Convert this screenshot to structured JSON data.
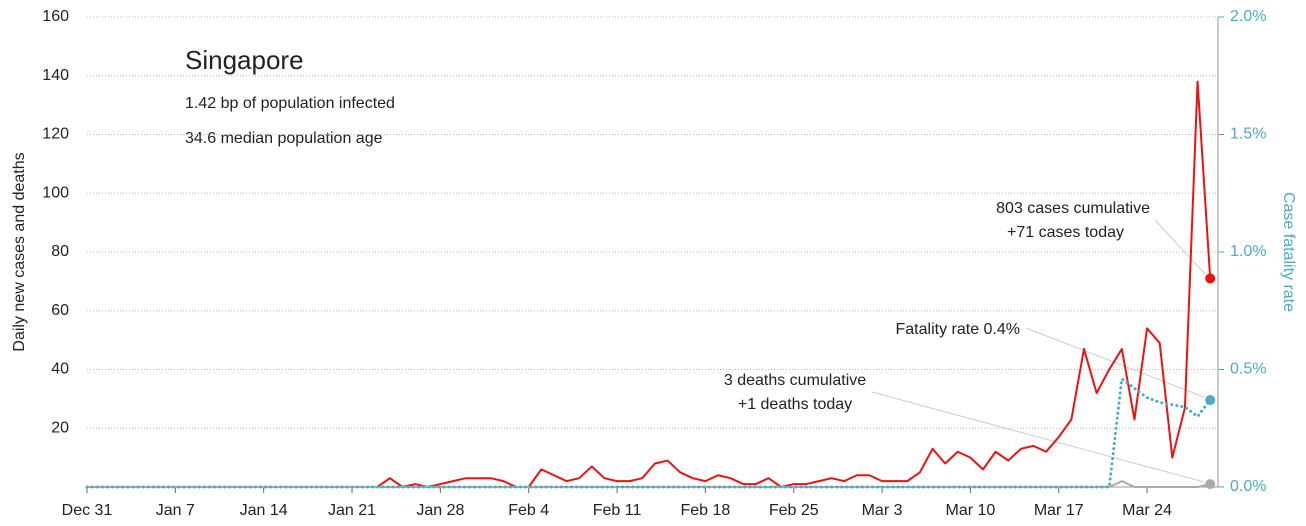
{
  "chart_data": {
    "type": "line",
    "title": "Singapore",
    "annotations": [
      "1.42 bp of population infected",
      "34.6 median population age",
      "803 cases cumulative",
      "+71 cases today",
      "Fatality rate 0.4%",
      "3 deaths cumulative",
      "+1 deaths today"
    ],
    "y_label": "Daily new cases and deaths",
    "y2_label": "Case fatality rate",
    "categories": [
      "Dec 31",
      null,
      null,
      null,
      null,
      null,
      null,
      "Jan 7",
      null,
      null,
      null,
      null,
      null,
      null,
      "Jan 14",
      null,
      null,
      null,
      null,
      null,
      null,
      "Jan 21",
      null,
      null,
      null,
      null,
      null,
      null,
      "Jan 28",
      null,
      null,
      null,
      null,
      null,
      null,
      "Feb 4",
      null,
      null,
      null,
      null,
      null,
      null,
      "Feb 11",
      null,
      null,
      null,
      null,
      null,
      null,
      "Feb 18",
      null,
      null,
      null,
      null,
      null,
      null,
      "Feb 25",
      null,
      null,
      null,
      null,
      null,
      null,
      "Mar 3",
      null,
      null,
      null,
      null,
      null,
      null,
      "Mar 10",
      null,
      null,
      null,
      null,
      null,
      null,
      "Mar 17",
      null,
      null,
      null,
      null,
      null,
      null,
      "Mar 24",
      null,
      null,
      null,
      null,
      null
    ],
    "series": [
      {
        "color": "#ee1111",
        "values": [
          0,
          0,
          0,
          0,
          0,
          0,
          0,
          0,
          0,
          0,
          0,
          0,
          0,
          0,
          0,
          0,
          0,
          0,
          0,
          0,
          0,
          0,
          0,
          0,
          3,
          0,
          1,
          0,
          1,
          2,
          3,
          3,
          3,
          2,
          0,
          0,
          6,
          4,
          2,
          3,
          7,
          3,
          2,
          2,
          3,
          8,
          9,
          5,
          3,
          2,
          4,
          3,
          1,
          1,
          3,
          0,
          1,
          1,
          2,
          3,
          2,
          4,
          4,
          2,
          2,
          2,
          5,
          13,
          8,
          12,
          10,
          6,
          12,
          9,
          13,
          14,
          12,
          17,
          23,
          47,
          32,
          40,
          47,
          23,
          54,
          49,
          10,
          27,
          138,
          71
        ]
      },
      {
        "color": "#aaaaaa",
        "values": [
          0,
          0,
          0,
          0,
          0,
          0,
          0,
          0,
          0,
          0,
          0,
          0,
          0,
          0,
          0,
          0,
          0,
          0,
          0,
          0,
          0,
          0,
          0,
          0,
          0,
          0,
          0,
          0,
          0,
          0,
          0,
          0,
          0,
          0,
          0,
          0,
          0,
          0,
          0,
          0,
          0,
          0,
          0,
          0,
          0,
          0,
          0,
          0,
          0,
          0,
          0,
          0,
          0,
          0,
          0,
          0,
          0,
          0,
          0,
          0,
          0,
          0,
          0,
          0,
          0,
          0,
          0,
          0,
          0,
          0,
          0,
          0,
          0,
          0,
          0,
          0,
          0,
          0,
          0,
          0,
          0,
          0,
          2,
          0,
          0,
          0,
          0,
          0,
          0,
          1
        ]
      },
      {
        "color": "#4bacc6",
        "axis": "y2",
        "values": [
          0,
          0,
          0,
          0,
          0,
          0,
          0,
          0,
          0,
          0,
          0,
          0,
          0,
          0,
          0,
          0,
          0,
          0,
          0,
          0,
          0,
          0,
          0,
          0,
          0,
          0,
          0,
          0,
          0,
          0,
          0,
          0,
          0,
          0,
          0,
          0,
          0,
          0,
          0,
          0,
          0,
          0,
          0,
          0,
          0,
          0,
          0,
          0,
          0,
          0,
          0,
          0,
          0,
          0,
          0,
          0,
          0,
          0,
          0,
          0,
          0,
          0,
          0,
          0,
          0,
          0,
          0,
          0,
          0,
          0,
          0,
          0,
          0,
          0,
          0,
          0,
          0,
          0,
          0,
          0,
          0,
          0,
          0.46,
          0.42,
          0.38,
          0.36,
          0.35,
          0.34,
          0.3,
          0.37
        ]
      }
    ],
    "ylim": [
      0,
      160
    ],
    "yticks": [
      20,
      40,
      60,
      80,
      100,
      120,
      140,
      160
    ],
    "y2lim": [
      0,
      2
    ],
    "y2ticks": [
      {
        "value": 0,
        "label": "0.0%"
      },
      {
        "value": 0.5,
        "label": "0.5%"
      },
      {
        "value": 1,
        "label": "1.0%"
      },
      {
        "value": 1.5,
        "label": "1.5%"
      },
      {
        "value": 2,
        "label": "2.0%"
      }
    ],
    "grid": true
  }
}
